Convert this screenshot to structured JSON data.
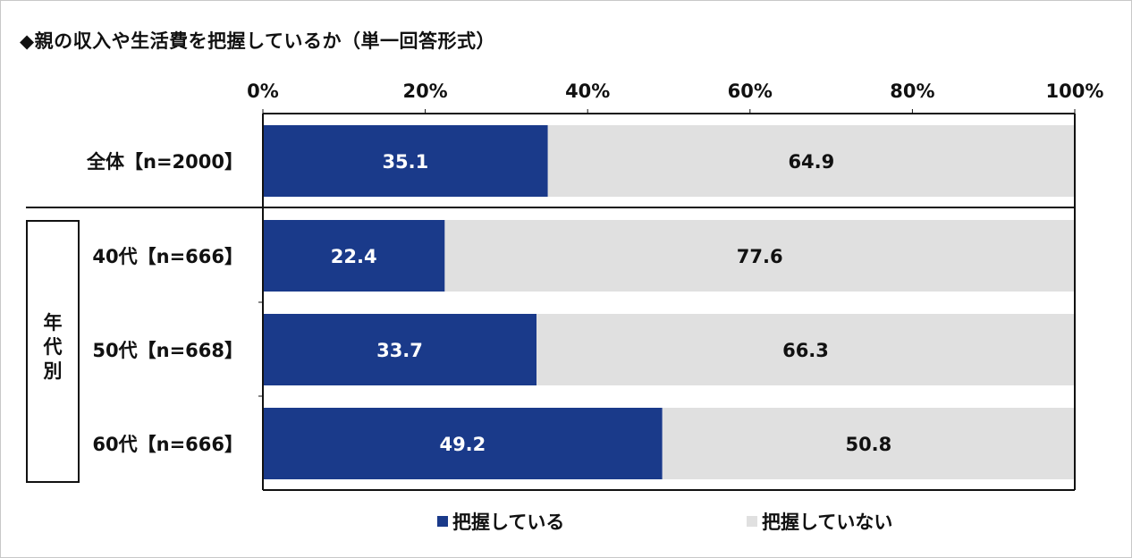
{
  "title": "◆親の収入や生活費を把握しているか（単一回答形式）",
  "group_label": "年\n代\n別",
  "chart_data": {
    "type": "bar",
    "orientation": "horizontal",
    "stacked": true,
    "title": "◆親の収入や生活費を把握しているか（単一回答形式）",
    "xlim": [
      0,
      100
    ],
    "x_ticks": [
      "0%",
      "20%",
      "40%",
      "60%",
      "80%",
      "100%"
    ],
    "categories": [
      "全体【n=2000】",
      "40代【n=666】",
      "50代【n=668】",
      "60代【n=666】"
    ],
    "series": [
      {
        "name": "把握している",
        "values": [
          35.1,
          22.4,
          33.7,
          49.2
        ],
        "color": "#1a3a8a"
      },
      {
        "name": "把握していない",
        "values": [
          64.9,
          77.6,
          66.3,
          50.8
        ],
        "color": "#e0e0e0"
      }
    ],
    "value_labels": [
      [
        "35.1",
        "22.4",
        "33.7",
        "49.2"
      ],
      [
        "64.9",
        "77.6",
        "66.3",
        "50.8"
      ]
    ],
    "legend_position": "bottom",
    "grid": false
  }
}
